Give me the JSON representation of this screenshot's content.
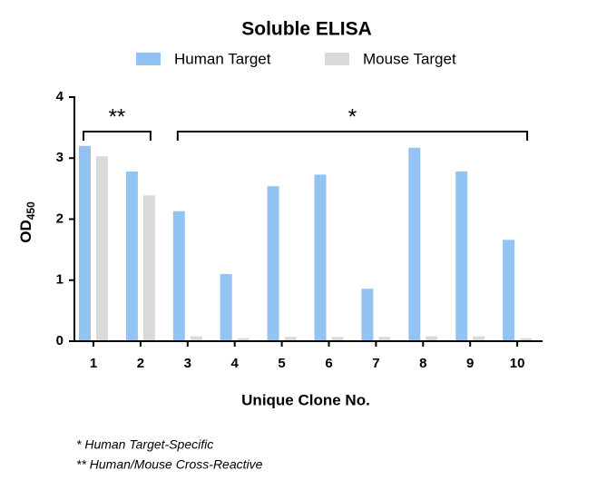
{
  "chart_data": {
    "type": "bar",
    "title": "Soluble ELISA",
    "xlabel": "Unique Clone No.",
    "ylabel": "OD",
    "ylabel_subscript": "450",
    "categories": [
      "1",
      "2",
      "3",
      "4",
      "5",
      "6",
      "7",
      "8",
      "9",
      "10"
    ],
    "series": [
      {
        "name": "Human Target",
        "color": "#93c3f3",
        "values": [
          3.2,
          2.78,
          2.13,
          1.1,
          2.54,
          2.73,
          0.86,
          3.17,
          2.78,
          1.66
        ]
      },
      {
        "name": "Mouse Target",
        "color": "#d9d9d9",
        "values": [
          3.03,
          2.39,
          0.08,
          0.05,
          0.07,
          0.07,
          0.07,
          0.08,
          0.08,
          0.05
        ]
      }
    ],
    "ylim": [
      0,
      4
    ],
    "yticks": [
      0,
      1,
      2,
      3,
      4
    ],
    "annotations": [
      {
        "text": "**",
        "start": "1",
        "end": "2"
      },
      {
        "text": "*",
        "start": "3",
        "end": "10"
      }
    ],
    "footnotes": [
      "* Human Target-Specific",
      "** Human/Mouse Cross-Reactive"
    ]
  }
}
